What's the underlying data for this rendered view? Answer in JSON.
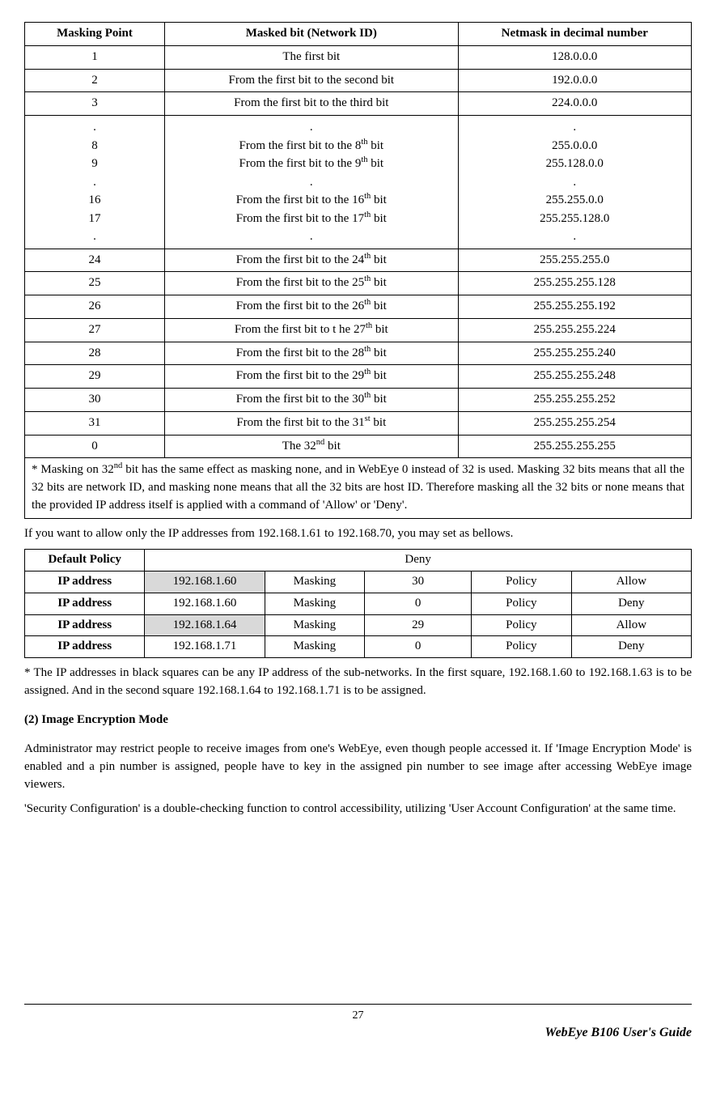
{
  "table1": {
    "columns": [
      "Masking Point",
      "Masked bit (Network ID)",
      "Netmask in decimal number"
    ],
    "rows_simple": [
      {
        "mp": "1",
        "mb": "The first bit",
        "nm": "128.0.0.0"
      },
      {
        "mp": "2",
        "mb": "From the first bit to the second bit",
        "nm": "192.0.0.0"
      },
      {
        "mp": "3",
        "mb": "From the first bit to the third bit",
        "nm": "224.0.0.0"
      }
    ],
    "group": {
      "mp": [
        ".",
        "8",
        "9",
        ".",
        "16",
        "17",
        "."
      ],
      "mb": [
        ".",
        "From the first bit to the 8<sup>th</sup> bit",
        "From the first bit to the 9<sup>th</sup> bit",
        ".",
        "From the first bit to the 16<sup>th</sup> bit",
        "From the first bit to the 17<sup>th</sup> bit",
        "."
      ],
      "nm": [
        ".",
        "255.0.0.0",
        "255.128.0.0",
        ".",
        "255.255.0.0",
        "255.255.128.0",
        "."
      ]
    },
    "rows_tail": [
      {
        "mp": "24",
        "mb": "From the first bit to the 24<sup>th</sup> bit",
        "nm": "255.255.255.0"
      },
      {
        "mp": "25",
        "mb": "From the first bit to the 25<sup>th</sup> bit",
        "nm": "255.255.255.128"
      },
      {
        "mp": "26",
        "mb": "From the first bit to the 26<sup>th</sup> bit",
        "nm": "255.255.255.192"
      },
      {
        "mp": "27",
        "mb": "From the first bit to t he 27<sup>th</sup> bit",
        "nm": "255.255.255.224"
      },
      {
        "mp": "28",
        "mb": "From the first bit to the 28<sup>th</sup> bit",
        "nm": "255.255.255.240"
      },
      {
        "mp": "29",
        "mb": "From the first bit to the 29<sup>th</sup> bit",
        "nm": "255.255.255.248"
      },
      {
        "mp": "30",
        "mb": "From the first bit to the 30<sup>th</sup> bit",
        "nm": "255.255.255.252"
      },
      {
        "mp": "31",
        "mb": "From the first bit to the 31<sup>st</sup> bit",
        "nm": "255.255.255.254"
      },
      {
        "mp": "0",
        "mb": "The 32<sup>nd</sup> bit",
        "nm": "255.255.255.255"
      }
    ],
    "note": "* Masking on 32<sup>nd</sup> bit has the same effect as masking none, and in WebEye 0 instead of 32 is used. Masking 32 bits means that all the 32 bits are network ID, and masking none means that all the 32 bits are host ID. Therefore masking all the 32 bits or none means that the provided IP address itself is applied with a command of 'Allow' or 'Deny'."
  },
  "intro2": "If you want to allow only the IP addresses from 192.168.1.61 to 192.168.70, you may set as  bellows.",
  "table2": {
    "default_label": "Default Policy",
    "default_value": "Deny",
    "cols": {
      "ip": "IP address",
      "mask": "Masking",
      "pol": "Policy"
    },
    "rows": [
      {
        "ip": "192.168.1.60",
        "mask": "30",
        "pol": "Allow",
        "shaded": true
      },
      {
        "ip": "192.168.1.60",
        "mask": "0",
        "pol": "Deny",
        "shaded": false
      },
      {
        "ip": "192.168.1.64",
        "mask": "29",
        "pol": "Allow",
        "shaded": true
      },
      {
        "ip": "192.168.1.71",
        "mask": "0",
        "pol": "Deny",
        "shaded": false
      }
    ]
  },
  "note2": "* The IP addresses in black squares can be any IP address of the sub-networks. In  the first square, 192.168.1.60 to 192.168.1.63 is to be assigned. And in the second square 192.168.1.64 to 192.168.1.71 is to be assigned.",
  "section2": {
    "heading": "(2) Image Encryption Mode",
    "p1": "Administrator may restrict people to receive images from one's WebEye, even though people accessed it. If 'Image Encryption Mode' is enabled and a pin number is assigned, people have to key in the assigned pin number to see image after accessing WebEye image viewers.",
    "p2": "'Security Configuration' is a double-checking function to control accessibility, utilizing 'User Account Configuration' at the same time."
  },
  "footer": {
    "page": "27",
    "brand": "WebEye B106",
    "suffix": " User's Guide"
  }
}
